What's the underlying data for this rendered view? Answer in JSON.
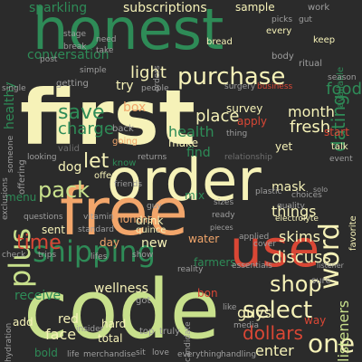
{
  "colors": {
    "background": "#2b2b2b",
    "cream": "#f6f2b8",
    "lime": "#c8e08c",
    "green": "#2e8b57",
    "dark_green": "#1f6b47",
    "orange": "#f2a66b",
    "red": "#d94735",
    "grey": "#9e9e9e"
  },
  "words": {
    "first": "first",
    "order": "order",
    "free": "free",
    "code": "code",
    "honest": "honest",
    "use": "use",
    "shipping": "shipping",
    "purchase": "purchase",
    "word": "word",
    "plus": "plus",
    "time": "time",
    "shop": "shop",
    "select": "select",
    "dollars": "dollars",
    "one": "one",
    "save": "save",
    "charge": "charge",
    "pack": "pack",
    "let": "let",
    "dating": "dating",
    "light": "light",
    "place": "place",
    "health": "health",
    "month": "month",
    "fresh": "fresh",
    "food": "food",
    "discuss": "discuss",
    "skims": "skims",
    "things": "things",
    "mask": "mask",
    "listeners": "listeners",
    "face": "face",
    "receive": "receive",
    "wellness": "wellness",
    "guys": "guys",
    "enter": "enter",
    "conversation": "conversation",
    "sparkling": "sparkling",
    "subscriptions": "subscriptions",
    "sample": "sample",
    "healthy": "healthy",
    "try": "try",
    "box": "box",
    "dog": "dog",
    "months": "months",
    "new": "new",
    "water": "water",
    "farmers": "farmers",
    "drink": "drink",
    "mix": "mix",
    "find": "find",
    "make": "make",
    "survey": "survey",
    "apply": "apply",
    "start": "start",
    "yet": "yet",
    "menu": "menu",
    "sent": "sent",
    "day": "day",
    "bon": "bon",
    "red": "red",
    "hard": "hard",
    "bold": "bold",
    "add": "add",
    "way": "way",
    "total": "total",
    "valid": "valid",
    "getting": "getting",
    "going": "going",
    "back": "back",
    "know": "know",
    "offer": "offer",
    "vitamin": "vitamin",
    "quince": "quince",
    "ready": "ready",
    "electrolyte": "electrolyte",
    "quality": "quality",
    "favorite": "favorite",
    "available": "available",
    "keep": "keep",
    "every": "every",
    "bread": "bread",
    "body": "body",
    "ritual": "ritual",
    "business": "business",
    "surgery": "surgery",
    "thing": "thing",
    "relationship": "relationship",
    "talk": "talk",
    "event": "event",
    "offering": "offering",
    "simple": "simple",
    "need": "need",
    "take": "take",
    "post": "post",
    "break": "break",
    "stage": "stage",
    "orders": "orders",
    "picks": "picks",
    "gut": "gut",
    "work": "work",
    "season": "season",
    "single": "single",
    "hydration": "hydration",
    "insider": "insider",
    "merchandise": "merchandise",
    "life": "life",
    "everything": "everything",
    "handling": "handling",
    "sit": "sit",
    "love": "love",
    "truly": "truly",
    "top": "top",
    "got": "got",
    "media": "media",
    "reality": "reality",
    "essentials": "essentials",
    "applied": "applied",
    "sure": "sure",
    "like": "like",
    "show": "show",
    "lifes": "lifes",
    "trips": "trips",
    "standard": "standard",
    "sizes": "sizes",
    "guy": "guy",
    "plastic": "plastic",
    "choices": "choices",
    "exclusions": "exclusions",
    "returns": "returns",
    "friends": "friends",
    "someone": "someone",
    "people": "people",
    "looking": "looking",
    "questions": "questions",
    "check": "check",
    "cover": "cover",
    "pieces": "pieces",
    "candidate": "candidate",
    "solo": "solo",
    "listener": "listener"
  }
}
